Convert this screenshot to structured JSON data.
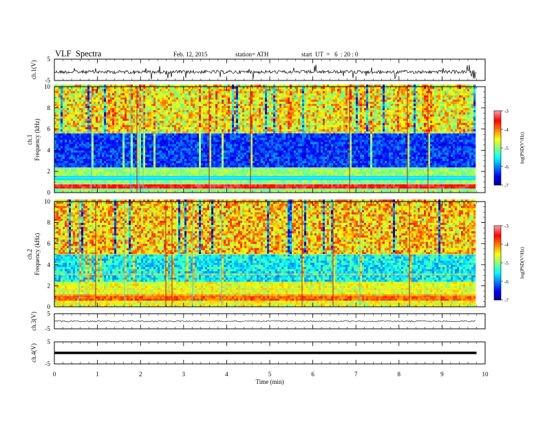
{
  "header": {
    "title": "VLF  Spectra",
    "date": "Feb. 12, 2015",
    "station": "station= ATH",
    "start": "start  UT  =   6  : 20 : 0"
  },
  "chart_data": [
    {
      "type": "line",
      "name": "ch1-waveform",
      "ylabel": "ch.1(V)",
      "ylim": [
        -5,
        5
      ],
      "yticks": [
        5,
        -5
      ],
      "x": [
        0,
        1,
        2,
        3,
        4,
        5,
        6,
        7,
        8,
        9,
        9.8
      ],
      "values": [
        -1,
        -1,
        -1,
        -1,
        -1,
        -1,
        -1,
        -1,
        -1,
        -1,
        -1
      ]
    },
    {
      "type": "heatmap",
      "name": "ch1-spectrogram",
      "ylabel": "ch.1\nFrequency  (kHz)",
      "ylim": [
        0,
        10
      ],
      "yticks": [
        0,
        2,
        4,
        6,
        8,
        10
      ],
      "xlim": [
        0,
        9.8
      ],
      "colorbar": {
        "label": "log(PSD(V²/Hz)",
        "range": [
          -7,
          -3
        ],
        "ticks": [
          -3,
          -4,
          -5,
          -6,
          -7
        ]
      }
    },
    {
      "type": "heatmap",
      "name": "ch2-spectrogram",
      "ylabel": "ch.2\nFrequency  (kHz)",
      "ylim": [
        0,
        10
      ],
      "yticks": [
        0,
        2,
        4,
        6,
        8,
        10
      ],
      "xlim": [
        0,
        9.8
      ],
      "colorbar": {
        "label": "log(PSD(V²/Hz)",
        "range": [
          -7,
          -3
        ],
        "ticks": [
          -3,
          -4,
          -5,
          -6,
          -7
        ]
      }
    },
    {
      "type": "line",
      "name": "ch3-waveform",
      "ylabel": "ch.3(V)",
      "ylim": [
        -5,
        5
      ],
      "yticks": [
        5,
        -5
      ],
      "x": [
        0,
        9.8
      ],
      "values": [
        0,
        0
      ]
    },
    {
      "type": "line",
      "name": "ch4-waveform",
      "ylabel": "ch.4(V)",
      "ylim": [
        -5,
        5
      ],
      "yticks": [
        5,
        -5
      ],
      "x": [
        0,
        9.8
      ],
      "values": [
        0,
        0
      ]
    }
  ],
  "x_axis": {
    "label": "Time  (min)",
    "range": [
      0,
      10
    ],
    "ticks": [
      0,
      1,
      2,
      3,
      4,
      5,
      6,
      7,
      8,
      9,
      10
    ]
  }
}
